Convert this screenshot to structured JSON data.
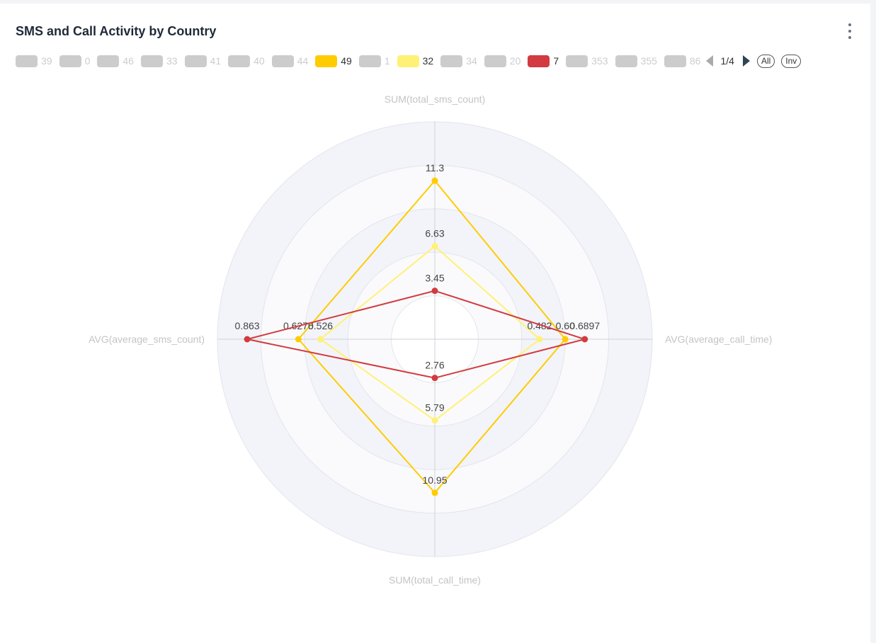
{
  "card": {
    "title": "SMS and Call Activity by Country"
  },
  "legend": {
    "items": [
      {
        "label": "39",
        "active": false,
        "color": "#cccccc"
      },
      {
        "label": "0",
        "active": false,
        "color": "#cccccc"
      },
      {
        "label": "46",
        "active": false,
        "color": "#cccccc"
      },
      {
        "label": "33",
        "active": false,
        "color": "#cccccc"
      },
      {
        "label": "41",
        "active": false,
        "color": "#cccccc"
      },
      {
        "label": "40",
        "active": false,
        "color": "#cccccc"
      },
      {
        "label": "44",
        "active": false,
        "color": "#cccccc"
      },
      {
        "label": "49",
        "active": true,
        "color": "#ffcc00"
      },
      {
        "label": "1",
        "active": false,
        "color": "#cccccc"
      },
      {
        "label": "32",
        "active": true,
        "color": "#fff176"
      },
      {
        "label": "34",
        "active": false,
        "color": "#cccccc"
      },
      {
        "label": "20",
        "active": false,
        "color": "#cccccc"
      },
      {
        "label": "7",
        "active": true,
        "color": "#d23b3f"
      },
      {
        "label": "353",
        "active": false,
        "color": "#cccccc"
      },
      {
        "label": "355",
        "active": false,
        "color": "#cccccc"
      },
      {
        "label": "86",
        "active": false,
        "color": "#cccccc"
      }
    ],
    "page": "1/4",
    "all_label": "All",
    "inv_label": "Inv"
  },
  "chart_data": {
    "type": "radar",
    "indicators": [
      "SUM(total_sms_count)",
      "AVG(average_call_time)",
      "SUM(total_call_time)",
      "AVG(average_sms_count)"
    ],
    "series": [
      {
        "name": "49",
        "color": "#ffcc00",
        "values": [
          11.3,
          0.6,
          10.95,
          0.6275
        ],
        "labels": [
          "11.3",
          "0.60",
          "10.95",
          "0.6275"
        ]
      },
      {
        "name": "32",
        "color": "#fff176",
        "values": [
          6.63,
          0.482,
          5.79,
          0.526
        ],
        "labels": [
          "6.63",
          "0.482",
          "5.79",
          "0.526"
        ]
      },
      {
        "name": "7",
        "color": "#d23b3f",
        "values": [
          3.45,
          0.6897,
          2.76,
          0.863
        ],
        "labels": [
          "3.45",
          "0.6897",
          "2.76",
          "0.863"
        ]
      }
    ],
    "max": [
      15.5,
      1.0,
      15.5,
      1.0
    ],
    "split_number": 5,
    "shape": "circle"
  }
}
